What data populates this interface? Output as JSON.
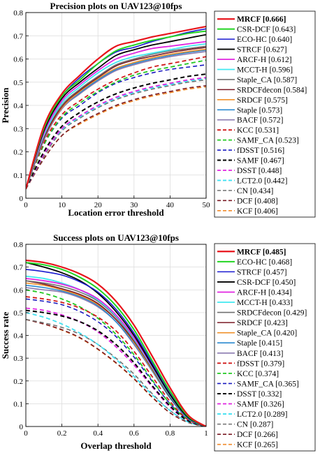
{
  "chart_data": [
    {
      "type": "line",
      "title": "Precision plots on UAV123@10fps",
      "xlabel": "Location error threshold",
      "ylabel": "Precision",
      "xlim": [
        0,
        50
      ],
      "ylim": [
        0,
        0.8
      ],
      "xticks": [
        0,
        10,
        20,
        30,
        40,
        50
      ],
      "yticks": [
        0,
        0.1,
        0.2,
        0.3,
        0.4,
        0.5,
        0.6,
        0.7,
        0.8
      ],
      "grid": true,
      "legend_placement": "right-outside",
      "series": [
        {
          "name": "MRCF [0.666]",
          "color": "#e8141c",
          "dash": "solid",
          "width": 2.2,
          "bold": true,
          "values": [
            0.04,
            0.31,
            0.45,
            0.53,
            0.6,
            0.655,
            0.675,
            0.695,
            0.71,
            0.725,
            0.74
          ]
        },
        {
          "name": "CSR-DCF [0.643]",
          "color": "#22d422",
          "dash": "solid",
          "width": 2,
          "values": [
            0.04,
            0.3,
            0.44,
            0.51,
            0.58,
            0.635,
            0.66,
            0.68,
            0.695,
            0.71,
            0.72
          ]
        },
        {
          "name": "ECO-HC [0.640]",
          "color": "#1a1ad0",
          "dash": "solid",
          "width": 1.6,
          "values": [
            0.04,
            0.31,
            0.44,
            0.52,
            0.58,
            0.63,
            0.65,
            0.675,
            0.695,
            0.715,
            0.73
          ]
        },
        {
          "name": "STRCF [0.627]",
          "color": "#000000",
          "dash": "solid",
          "width": 1.8,
          "values": [
            0.04,
            0.29,
            0.43,
            0.5,
            0.56,
            0.615,
            0.64,
            0.66,
            0.675,
            0.69,
            0.705
          ]
        },
        {
          "name": "ARCF-H [0.612]",
          "color": "#e024e0",
          "dash": "solid",
          "width": 1.8,
          "values": [
            0.04,
            0.28,
            0.42,
            0.49,
            0.55,
            0.6,
            0.625,
            0.645,
            0.655,
            0.665,
            0.675
          ]
        },
        {
          "name": "MCCT-H [0.596]",
          "color": "#40e8f0",
          "dash": "solid",
          "width": 1.8,
          "values": [
            0.04,
            0.27,
            0.41,
            0.48,
            0.54,
            0.585,
            0.61,
            0.625,
            0.64,
            0.655,
            0.665
          ]
        },
        {
          "name": "Staple_CA [0.587]",
          "color": "#707070",
          "dash": "solid",
          "width": 1.6,
          "values": [
            0.04,
            0.27,
            0.4,
            0.47,
            0.525,
            0.575,
            0.6,
            0.62,
            0.635,
            0.645,
            0.655
          ]
        },
        {
          "name": "SRDCFdecon [0.584]",
          "color": "#7a1a24",
          "dash": "solid",
          "width": 1.6,
          "values": [
            0.04,
            0.26,
            0.395,
            0.465,
            0.52,
            0.57,
            0.595,
            0.612,
            0.628,
            0.64,
            0.65
          ]
        },
        {
          "name": "SRDCF [0.575]",
          "color": "#f0902a",
          "dash": "solid",
          "width": 1.6,
          "values": [
            0.04,
            0.26,
            0.39,
            0.46,
            0.515,
            0.56,
            0.585,
            0.605,
            0.62,
            0.632,
            0.642
          ]
        },
        {
          "name": "Staple [0.573]",
          "color": "#2a8ad0",
          "dash": "solid",
          "width": 1.6,
          "values": [
            0.04,
            0.26,
            0.39,
            0.455,
            0.51,
            0.555,
            0.58,
            0.6,
            0.615,
            0.628,
            0.638
          ]
        },
        {
          "name": "BACF [0.572]",
          "color": "#8a7ab0",
          "dash": "solid",
          "width": 1.6,
          "values": [
            0.04,
            0.25,
            0.385,
            0.45,
            0.505,
            0.55,
            0.575,
            0.595,
            0.61,
            0.622,
            0.632
          ]
        },
        {
          "name": "KCC [0.531]",
          "color": "#d01a1a",
          "dash": "6,4",
          "width": 1.8,
          "values": [
            0.04,
            0.24,
            0.36,
            0.42,
            0.47,
            0.51,
            0.54,
            0.565,
            0.58,
            0.595,
            0.61
          ]
        },
        {
          "name": "SAMF_CA [0.523]",
          "color": "#22c822",
          "dash": "6,4",
          "width": 1.8,
          "values": [
            0.04,
            0.23,
            0.35,
            0.41,
            0.46,
            0.5,
            0.53,
            0.55,
            0.565,
            0.58,
            0.595
          ]
        },
        {
          "name": "fDSST [0.516]",
          "color": "#1a1ac0",
          "dash": "6,4",
          "width": 1.6,
          "values": [
            0.04,
            0.23,
            0.345,
            0.4,
            0.455,
            0.495,
            0.52,
            0.54,
            0.555,
            0.565,
            0.575
          ]
        },
        {
          "name": "SAMF [0.467]",
          "color": "#000000",
          "dash": "6,4",
          "width": 2,
          "values": [
            0.04,
            0.2,
            0.31,
            0.37,
            0.415,
            0.45,
            0.475,
            0.495,
            0.51,
            0.525,
            0.535
          ]
        },
        {
          "name": "DSST [0.448]",
          "color": "#e024e0",
          "dash": "6,4",
          "width": 1.8,
          "values": [
            0.04,
            0.19,
            0.3,
            0.355,
            0.4,
            0.435,
            0.46,
            0.48,
            0.495,
            0.51,
            0.52
          ]
        },
        {
          "name": "LCT2.0 [0.442]",
          "color": "#40e0f0",
          "dash": "6,4",
          "width": 1.8,
          "values": [
            0.04,
            0.19,
            0.295,
            0.35,
            0.395,
            0.43,
            0.455,
            0.475,
            0.49,
            0.505,
            0.515
          ]
        },
        {
          "name": "CN [0.434]",
          "color": "#707070",
          "dash": "6,4",
          "width": 1.6,
          "values": [
            0.04,
            0.18,
            0.29,
            0.345,
            0.39,
            0.425,
            0.45,
            0.47,
            0.485,
            0.5,
            0.51
          ]
        },
        {
          "name": "DCF [0.408]",
          "color": "#7a1a24",
          "dash": "6,4",
          "width": 1.6,
          "values": [
            0.04,
            0.17,
            0.27,
            0.325,
            0.365,
            0.4,
            0.425,
            0.445,
            0.46,
            0.475,
            0.485
          ]
        },
        {
          "name": "KCF [0.406]",
          "color": "#f08a2a",
          "dash": "6,4",
          "width": 1.6,
          "values": [
            0.04,
            0.17,
            0.27,
            0.32,
            0.36,
            0.395,
            0.42,
            0.44,
            0.455,
            0.47,
            0.48
          ]
        }
      ],
      "x": [
        0,
        5,
        10,
        15,
        20,
        25,
        30,
        35,
        40,
        45,
        50
      ]
    },
    {
      "type": "line",
      "title": "Success plots on UAV123@10fps",
      "xlabel": "Overlap threshold",
      "ylabel": "Success rate",
      "xlim": [
        0,
        1
      ],
      "ylim": [
        0,
        0.8
      ],
      "xticks": [
        0,
        0.2,
        0.4,
        0.6,
        0.8,
        1
      ],
      "yticks": [
        0,
        0.1,
        0.2,
        0.3,
        0.4,
        0.5,
        0.6,
        0.7,
        0.8
      ],
      "grid": true,
      "legend_placement": "right-outside",
      "x": [
        0,
        0.1,
        0.2,
        0.3,
        0.4,
        0.5,
        0.6,
        0.7,
        0.8,
        0.9,
        1.0
      ],
      "series": [
        {
          "name": "MRCF [0.485]",
          "color": "#e8141c",
          "dash": "solid",
          "width": 2.2,
          "bold": true,
          "values": [
            0.73,
            0.72,
            0.7,
            0.67,
            0.625,
            0.55,
            0.445,
            0.31,
            0.17,
            0.05,
            0.0
          ]
        },
        {
          "name": "ECO-HC [0.468]",
          "color": "#22d422",
          "dash": "solid",
          "width": 2,
          "values": [
            0.72,
            0.71,
            0.69,
            0.655,
            0.605,
            0.53,
            0.425,
            0.29,
            0.155,
            0.045,
            0.0
          ]
        },
        {
          "name": "STRCF [0.457]",
          "color": "#1a1ad0",
          "dash": "solid",
          "width": 1.6,
          "values": [
            0.69,
            0.68,
            0.665,
            0.635,
            0.59,
            0.515,
            0.41,
            0.28,
            0.15,
            0.045,
            0.0
          ]
        },
        {
          "name": "CSR-DCF [0.450]",
          "color": "#000000",
          "dash": "solid",
          "width": 1.8,
          "values": [
            0.72,
            0.7,
            0.675,
            0.64,
            0.585,
            0.505,
            0.4,
            0.27,
            0.14,
            0.04,
            0.0
          ]
        },
        {
          "name": "ARCF-H [0.434]",
          "color": "#e024e0",
          "dash": "solid",
          "width": 1.8,
          "values": [
            0.65,
            0.64,
            0.625,
            0.6,
            0.56,
            0.49,
            0.39,
            0.265,
            0.14,
            0.04,
            0.0
          ]
        },
        {
          "name": "MCCT-H [0.433]",
          "color": "#40e8f0",
          "dash": "solid",
          "width": 1.8,
          "values": [
            0.66,
            0.65,
            0.63,
            0.6,
            0.555,
            0.485,
            0.385,
            0.26,
            0.135,
            0.04,
            0.0
          ]
        },
        {
          "name": "SRDCFdecon [0.429]",
          "color": "#707070",
          "dash": "solid",
          "width": 1.6,
          "values": [
            0.64,
            0.63,
            0.615,
            0.59,
            0.55,
            0.48,
            0.38,
            0.26,
            0.135,
            0.04,
            0.0
          ]
        },
        {
          "name": "SRDCF [0.423]",
          "color": "#7a1a24",
          "dash": "solid",
          "width": 1.6,
          "values": [
            0.64,
            0.625,
            0.605,
            0.58,
            0.54,
            0.47,
            0.375,
            0.255,
            0.13,
            0.04,
            0.0
          ]
        },
        {
          "name": "Staple_CA [0.420]",
          "color": "#f0902a",
          "dash": "solid",
          "width": 1.6,
          "values": [
            0.63,
            0.62,
            0.6,
            0.575,
            0.535,
            0.47,
            0.37,
            0.25,
            0.13,
            0.04,
            0.0
          ]
        },
        {
          "name": "Staple [0.415]",
          "color": "#2a8ad0",
          "dash": "solid",
          "width": 1.6,
          "values": [
            0.62,
            0.61,
            0.595,
            0.57,
            0.53,
            0.46,
            0.365,
            0.245,
            0.125,
            0.035,
            0.0
          ]
        },
        {
          "name": "BACF [0.413]",
          "color": "#8a7ab0",
          "dash": "solid",
          "width": 1.6,
          "values": [
            0.61,
            0.6,
            0.59,
            0.565,
            0.525,
            0.46,
            0.36,
            0.245,
            0.125,
            0.035,
            0.0
          ]
        },
        {
          "name": "fDSST [0.379]",
          "color": "#d01a1a",
          "dash": "6,4",
          "width": 1.8,
          "values": [
            0.57,
            0.56,
            0.545,
            0.52,
            0.48,
            0.42,
            0.33,
            0.22,
            0.11,
            0.03,
            0.0
          ]
        },
        {
          "name": "KCC [0.374]",
          "color": "#22c822",
          "dash": "6,4",
          "width": 1.8,
          "values": [
            0.6,
            0.585,
            0.56,
            0.525,
            0.475,
            0.405,
            0.315,
            0.205,
            0.1,
            0.03,
            0.0
          ]
        },
        {
          "name": "SAMF_CA [0.365]",
          "color": "#1a1ac0",
          "dash": "6,4",
          "width": 1.6,
          "values": [
            0.56,
            0.55,
            0.535,
            0.505,
            0.46,
            0.395,
            0.305,
            0.2,
            0.1,
            0.03,
            0.0
          ]
        },
        {
          "name": "DSST [0.332]",
          "color": "#000000",
          "dash": "6,4",
          "width": 2,
          "values": [
            0.51,
            0.5,
            0.485,
            0.46,
            0.42,
            0.36,
            0.28,
            0.18,
            0.09,
            0.025,
            0.0
          ]
        },
        {
          "name": "SAMF [0.326]",
          "color": "#e024e0",
          "dash": "6,4",
          "width": 1.8,
          "values": [
            0.52,
            0.51,
            0.49,
            0.46,
            0.415,
            0.35,
            0.27,
            0.175,
            0.085,
            0.025,
            0.0
          ]
        },
        {
          "name": "LCT2.0 [0.289]",
          "color": "#40e0f0",
          "dash": "6,4",
          "width": 1.8,
          "values": [
            0.5,
            0.48,
            0.45,
            0.41,
            0.36,
            0.295,
            0.22,
            0.14,
            0.07,
            0.02,
            0.0
          ]
        },
        {
          "name": "CN [0.287]",
          "color": "#707070",
          "dash": "6,4",
          "width": 1.6,
          "values": [
            0.47,
            0.455,
            0.435,
            0.405,
            0.36,
            0.3,
            0.23,
            0.145,
            0.07,
            0.02,
            0.0
          ]
        },
        {
          "name": "DCF [0.266]",
          "color": "#7a1a24",
          "dash": "6,4",
          "width": 1.6,
          "values": [
            0.47,
            0.45,
            0.425,
            0.39,
            0.34,
            0.28,
            0.21,
            0.13,
            0.06,
            0.018,
            0.0
          ]
        },
        {
          "name": "KCF [0.265]",
          "color": "#f08a2a",
          "dash": "6,4",
          "width": 1.6,
          "values": [
            0.47,
            0.45,
            0.423,
            0.388,
            0.338,
            0.278,
            0.208,
            0.128,
            0.06,
            0.018,
            0.0
          ]
        }
      ]
    }
  ]
}
